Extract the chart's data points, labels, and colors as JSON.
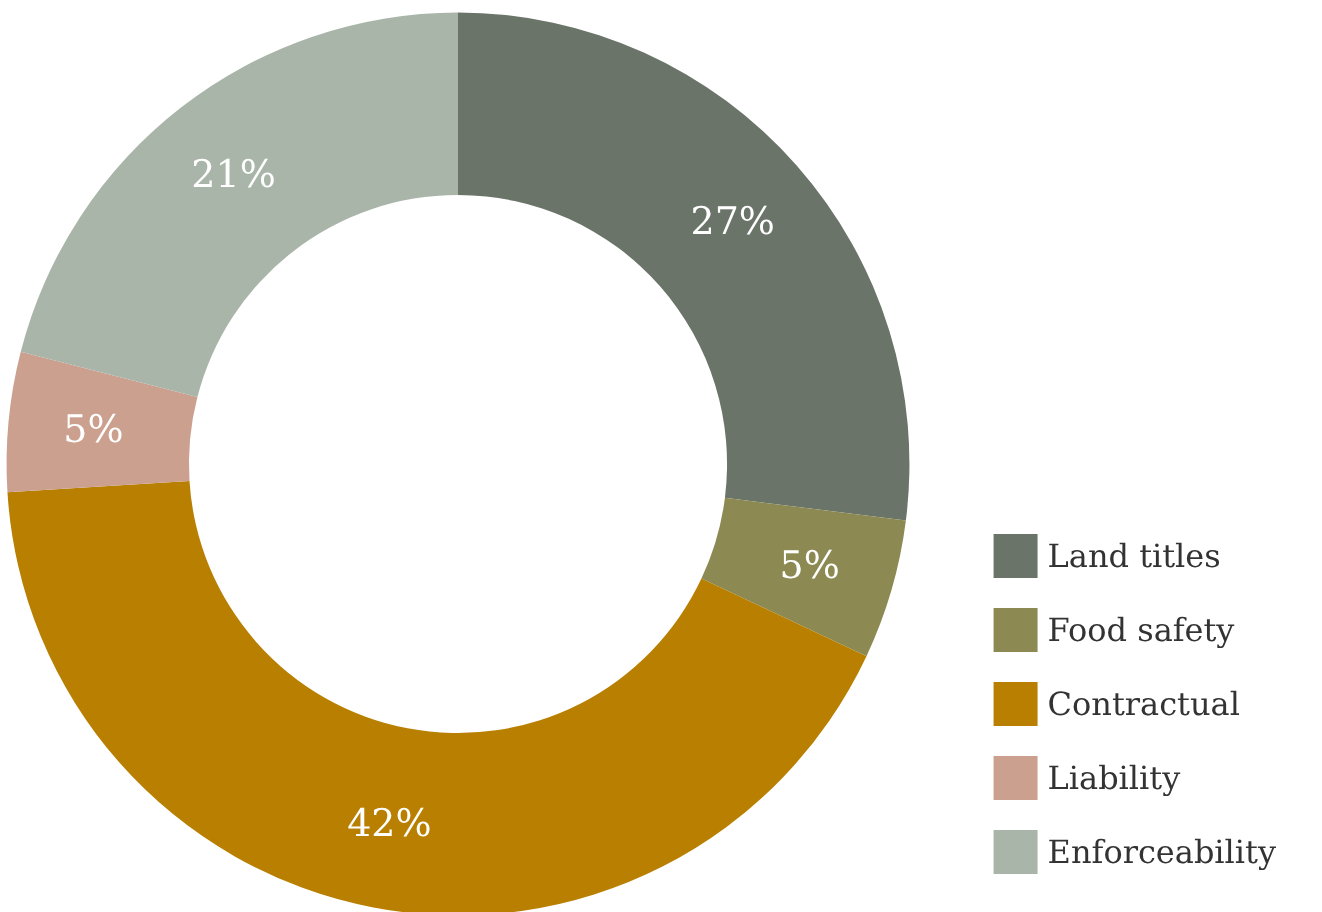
{
  "chart_data": {
    "type": "donut",
    "categories": [
      "Land titles",
      "Food safety",
      "Contractual",
      "Liability",
      "Enforceability"
    ],
    "values": [
      27,
      5,
      42,
      5,
      21
    ],
    "colors": [
      "#6a7469",
      "#8c8a52",
      "#b87f00",
      "#cba08f",
      "#aab5aa"
    ],
    "value_labels": [
      "27%",
      "5%",
      "42%",
      "5%",
      "21%"
    ],
    "legend": "bottom right"
  }
}
